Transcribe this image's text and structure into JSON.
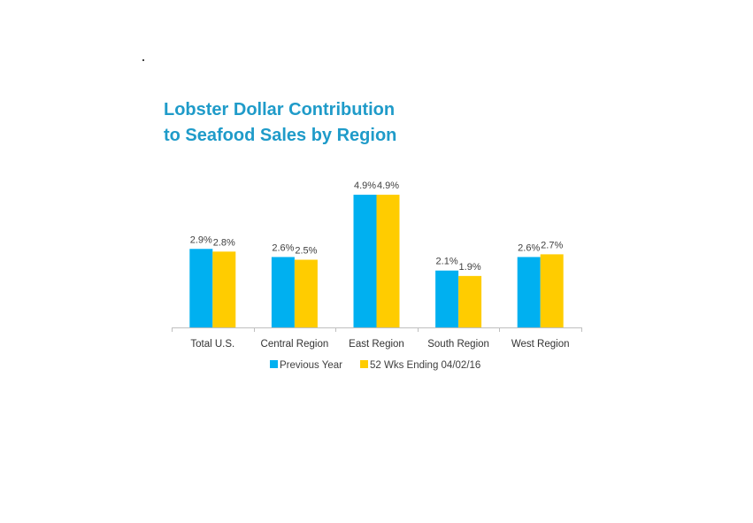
{
  "title_line1": "Lobster Dollar Contribution",
  "title_line2": "to Seafood Sales by Region",
  "chart_data": {
    "type": "bar",
    "title": "Lobster Dollar Contribution to Seafood Sales by Region",
    "categories": [
      "Total U.S.",
      "Central Region",
      "East Region",
      "South Region",
      "West Region"
    ],
    "series": [
      {
        "name": "Previous Year",
        "values": [
          2.9,
          2.6,
          4.9,
          2.1,
          2.6
        ],
        "labels": [
          "2.9%",
          "2.6%",
          "4.9%",
          "2.1%",
          "2.6%"
        ],
        "color": "#00b0f0"
      },
      {
        "name": "52 Wks Ending 04/02/16",
        "values": [
          2.8,
          2.5,
          4.9,
          1.9,
          2.7
        ],
        "labels": [
          "2.8%",
          "2.5%",
          "4.9%",
          "1.9%",
          "2.7%"
        ],
        "color": "#ffcc00"
      }
    ],
    "ylim": [
      0,
      5
    ],
    "grid": false,
    "legend_position": "bottom"
  }
}
